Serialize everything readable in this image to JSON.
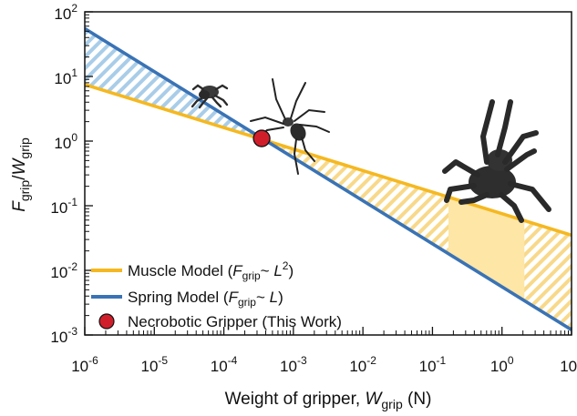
{
  "chart_data": {
    "type": "line",
    "x_scale": "log",
    "y_scale": "log",
    "xlim": [
      1e-06,
      10
    ],
    "ylim": [
      0.001,
      100
    ],
    "x_ticks": [
      1e-06,
      1e-05,
      0.0001,
      0.001,
      0.01,
      0.1,
      1,
      10
    ],
    "x_tick_labels": [
      {
        "base": "10",
        "exp": "-6"
      },
      {
        "base": "10",
        "exp": "-5"
      },
      {
        "base": "10",
        "exp": "-4"
      },
      {
        "base": "10",
        "exp": "-3"
      },
      {
        "base": "10",
        "exp": "-2"
      },
      {
        "base": "10",
        "exp": "-1"
      },
      {
        "base": "10",
        "exp": "0"
      },
      {
        "base": "10",
        "exp": "1"
      }
    ],
    "y_ticks": [
      0.001,
      0.01,
      0.1,
      1,
      10,
      100
    ],
    "y_tick_labels": [
      {
        "base": "10",
        "exp": "-3"
      },
      {
        "base": "10",
        "exp": "-2"
      },
      {
        "base": "10",
        "exp": "-1"
      },
      {
        "base": "10",
        "exp": "0"
      },
      {
        "base": "10",
        "exp": "1"
      },
      {
        "base": "10",
        "exp": "2"
      }
    ],
    "xlabel": {
      "main": "Weight of gripper, ",
      "var": "W",
      "sub": "grip",
      "unit": " (N)"
    },
    "ylabel": {
      "num_var": "F",
      "num_sub": "grip",
      "sep": "/",
      "den_var": "W",
      "den_sub": "grip"
    },
    "series": [
      {
        "name": "Muscle Model",
        "legend": {
          "pre": "Muscle Model (",
          "var": "F",
          "sub": "grip",
          "mid": "~ ",
          "var2": "L",
          "sup": "2",
          "post": ")"
        },
        "color": "#f5b820",
        "x": [
          1e-06,
          10
        ],
        "y": [
          7.5,
          0.035
        ]
      },
      {
        "name": "Spring Model",
        "legend": {
          "pre": "Spring Model (",
          "var": "F",
          "sub": "grip",
          "mid": "~ ",
          "var2": "L",
          "post": ")"
        },
        "color": "#3a73b5",
        "x": [
          1e-06,
          10
        ],
        "y": [
          55,
          0.0012
        ]
      }
    ],
    "points": [
      {
        "name": "Necrobotic Gripper (This Work)",
        "color": "#d01f2b",
        "x": 0.00035,
        "y": 1.1
      }
    ],
    "highlight_band": {
      "x": [
        0.17,
        2.1
      ],
      "color": "#fde6a6"
    },
    "legend_placement": "bottom-left",
    "grid": false,
    "colors": {
      "muscle": "#f5b820",
      "spring": "#3a73b5",
      "gripper_point": "#d01f2b",
      "hatch_blue": "#a9cde8",
      "hatch_yellow": "#f8d98a",
      "band": "#fde6a6",
      "spider": "#2a2a2a"
    },
    "icons": [
      "small-spider-icon",
      "long-leg-spider-icon",
      "tarantula-icon"
    ]
  }
}
